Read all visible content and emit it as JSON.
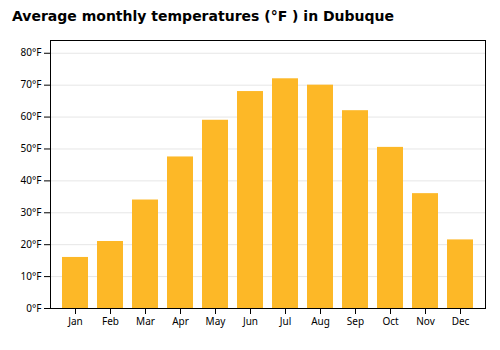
{
  "chart_data": {
    "type": "bar",
    "title": "Average monthly temperatures (°F ) in Dubuque",
    "categories": [
      "Jan",
      "Feb",
      "Mar",
      "Apr",
      "May",
      "Jun",
      "Jul",
      "Aug",
      "Sep",
      "Oct",
      "Nov",
      "Dec"
    ],
    "values": [
      16,
      21,
      34,
      47.5,
      59,
      68,
      72,
      70,
      62,
      50.5,
      36,
      21.5
    ],
    "color": "#FDB827",
    "ylim": [
      0,
      84
    ],
    "yticks": [
      {
        "value": 0,
        "label": "0°F"
      },
      {
        "value": 10,
        "label": "10°F"
      },
      {
        "value": 20,
        "label": "20°F"
      },
      {
        "value": 30,
        "label": "30°F"
      },
      {
        "value": 40,
        "label": "40°F"
      },
      {
        "value": 50,
        "label": "50°F"
      },
      {
        "value": 60,
        "label": "60°F"
      },
      {
        "value": 70,
        "label": "70°F"
      },
      {
        "value": 80,
        "label": "80°F"
      }
    ],
    "grid": true
  }
}
